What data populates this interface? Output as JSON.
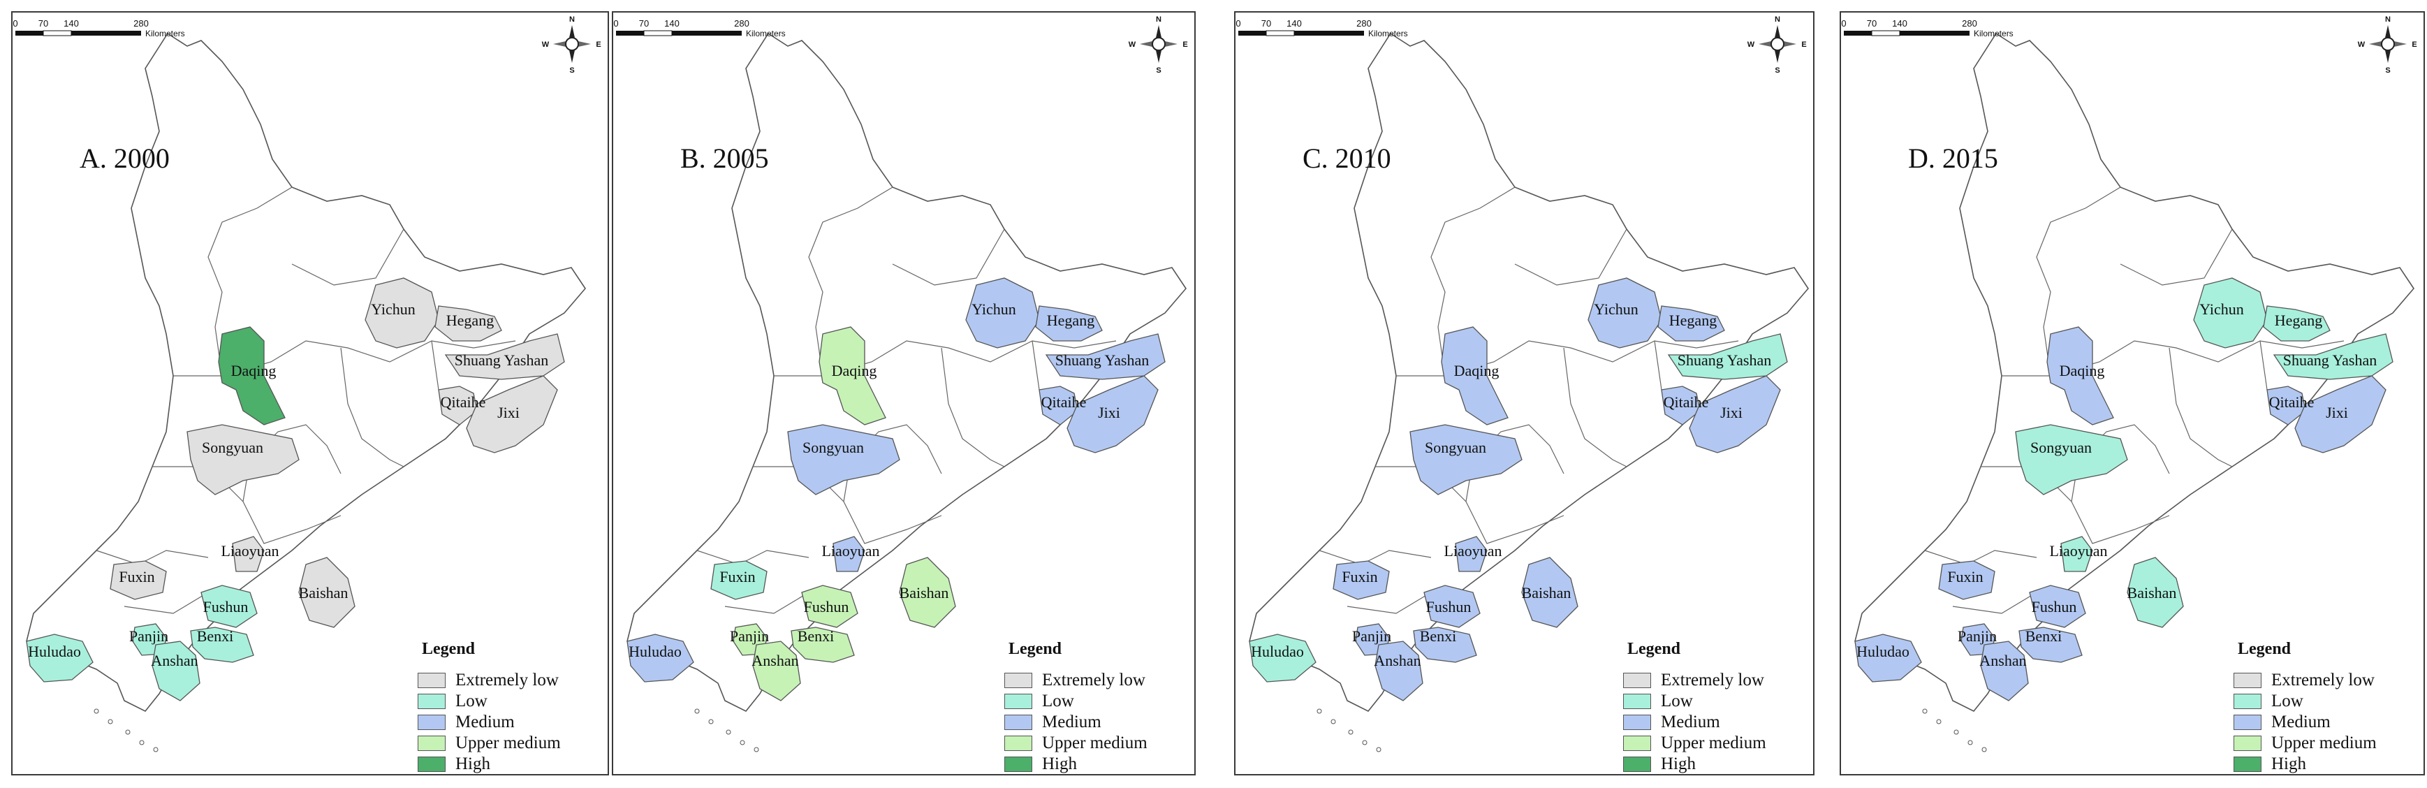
{
  "legend": {
    "title": "Legend",
    "items": [
      {
        "label": "Extremely low",
        "color": "#e0e0e0"
      },
      {
        "label": "Low",
        "color": "#a8f0dc"
      },
      {
        "label": "Medium",
        "color": "#b2c8f2"
      },
      {
        "label": "Upper medium",
        "color": "#c6f2b6"
      },
      {
        "label": "High",
        "color": "#4caf6a"
      }
    ]
  },
  "scale": {
    "ticks": [
      "0",
      "70",
      "140",
      "280"
    ],
    "unit": "Kilometers"
  },
  "compass": {
    "n": "N",
    "s": "S",
    "e": "E",
    "w": "W"
  },
  "cities": [
    {
      "id": "daqing",
      "name": "Daqing"
    },
    {
      "id": "yichun",
      "name": "Yichun"
    },
    {
      "id": "hegang",
      "name": "Hegang"
    },
    {
      "id": "shuangyashan",
      "name": "Shuang Yashan"
    },
    {
      "id": "qitaihe",
      "name": "Qitaihe"
    },
    {
      "id": "jixi",
      "name": "Jixi"
    },
    {
      "id": "songyuan",
      "name": "Songyuan"
    },
    {
      "id": "liaoyuan",
      "name": "Liaoyuan"
    },
    {
      "id": "fuxin",
      "name": "Fuxin"
    },
    {
      "id": "baishan",
      "name": "Baishan"
    },
    {
      "id": "fushun",
      "name": "Fushun"
    },
    {
      "id": "huludao",
      "name": "Huludao"
    },
    {
      "id": "panjin",
      "name": "Panjin"
    },
    {
      "id": "benxi",
      "name": "Benxi"
    },
    {
      "id": "anshan",
      "name": "Anshan"
    }
  ],
  "panels": [
    {
      "title": "A. 2000",
      "levels": {
        "daqing": "High",
        "yichun": "Extremely low",
        "hegang": "Extremely low",
        "shuangyashan": "Extremely low",
        "qitaihe": "Extremely low",
        "jixi": "Extremely low",
        "songyuan": "Extremely low",
        "liaoyuan": "Extremely low",
        "fuxin": "Extremely low",
        "baishan": "Extremely low",
        "fushun": "Low",
        "huludao": "Low",
        "panjin": "Low",
        "benxi": "Low",
        "anshan": "Low"
      }
    },
    {
      "title": "B. 2005",
      "levels": {
        "daqing": "Upper medium",
        "yichun": "Medium",
        "hegang": "Medium",
        "shuangyashan": "Medium",
        "qitaihe": "Medium",
        "jixi": "Medium",
        "songyuan": "Medium",
        "liaoyuan": "Medium",
        "fuxin": "Low",
        "baishan": "Upper medium",
        "fushun": "Upper medium",
        "huludao": "Medium",
        "panjin": "Upper medium",
        "benxi": "Upper medium",
        "anshan": "Upper medium"
      }
    },
    {
      "title": "C. 2010",
      "levels": {
        "daqing": "Medium",
        "yichun": "Medium",
        "hegang": "Medium",
        "shuangyashan": "Low",
        "qitaihe": "Medium",
        "jixi": "Medium",
        "songyuan": "Medium",
        "liaoyuan": "Medium",
        "fuxin": "Medium",
        "baishan": "Medium",
        "fushun": "Medium",
        "huludao": "Low",
        "panjin": "Medium",
        "benxi": "Medium",
        "anshan": "Medium"
      }
    },
    {
      "title": "D. 2015",
      "levels": {
        "daqing": "Medium",
        "yichun": "Low",
        "hegang": "Low",
        "shuangyashan": "Low",
        "qitaihe": "Medium",
        "jixi": "Medium",
        "songyuan": "Low",
        "liaoyuan": "Low",
        "fuxin": "Medium",
        "baishan": "Low",
        "fushun": "Medium",
        "huludao": "Medium",
        "panjin": "Medium",
        "benxi": "Medium",
        "anshan": "Medium"
      }
    }
  ]
}
